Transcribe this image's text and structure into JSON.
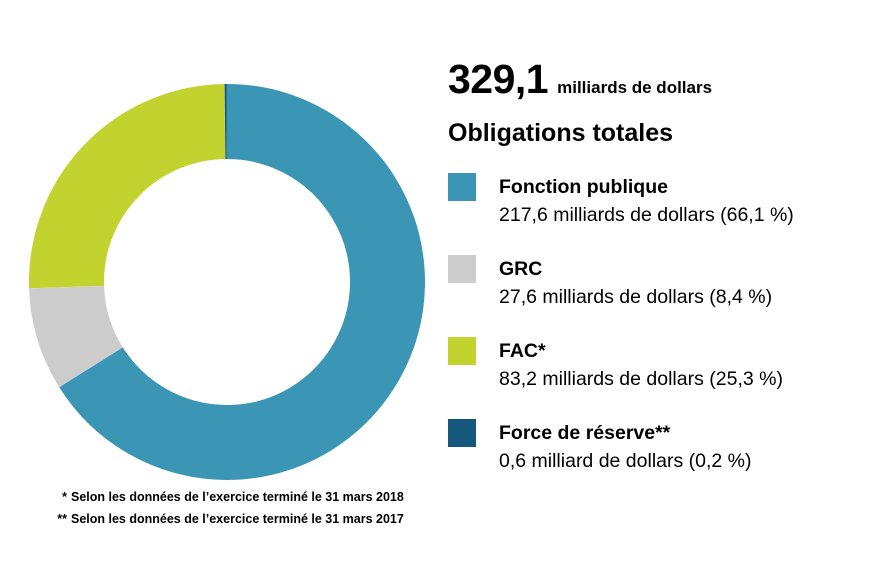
{
  "header": {
    "total_value": "329,1",
    "total_unit": "milliards de dollars",
    "subtitle": "Obligations totales"
  },
  "chart_data": {
    "type": "pie",
    "variant": "donut",
    "title": "Obligations totales",
    "total_value_billions": 329.1,
    "total_label": "329,1 milliards de dollars",
    "start_angle_deg": -90,
    "direction": "clockwise",
    "segments": [
      {
        "id": "fonction-publique",
        "label": "Fonction publique",
        "value_billions": 217.6,
        "percent": 66.1,
        "value_text": "217,6 milliards de dollars (66,1 %)",
        "color": "#3A96B4"
      },
      {
        "id": "grc",
        "label": "GRC",
        "value_billions": 27.6,
        "percent": 8.4,
        "value_text": "27,6 milliards de dollars (8,4 %)",
        "color": "#CCCCCC"
      },
      {
        "id": "fac",
        "label": "FAC*",
        "value_billions": 83.2,
        "percent": 25.3,
        "value_text": "83,2 milliards de dollars (25,3 %)",
        "color": "#C2D32F"
      },
      {
        "id": "force-de-reserve",
        "label": "Force de réserve**",
        "value_billions": 0.6,
        "percent": 0.2,
        "value_text": "0,6 milliard de dollars (0,2 %)",
        "color": "#16587B"
      }
    ]
  },
  "footnotes": [
    {
      "marker": "*",
      "text": "Selon les données de l’exercice terminé le 31 mars 2018"
    },
    {
      "marker": "**",
      "text": "Selon les données de l’exercice terminé le 31 mars 2017"
    }
  ]
}
